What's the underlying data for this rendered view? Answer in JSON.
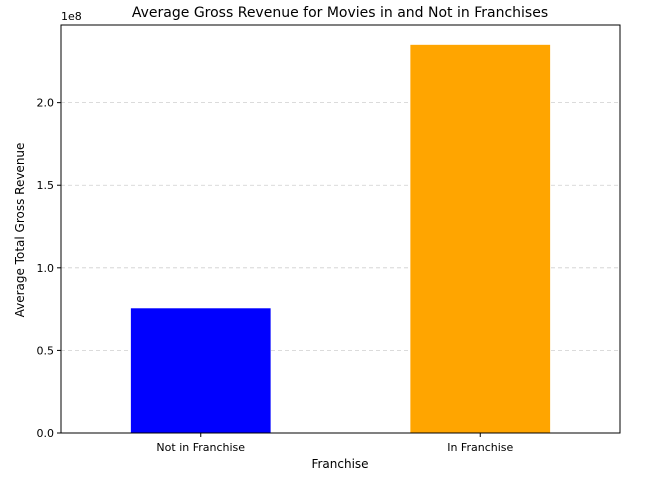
{
  "chart_data": {
    "type": "bar",
    "title": "Average Gross Revenue for Movies in and Not in Franchises",
    "xlabel": "Franchise",
    "ylabel": "Average Total Gross Revenue",
    "y_offset_label": "1e8",
    "categories": [
      "Not in Franchise",
      "In Franchise"
    ],
    "values": [
      75500000,
      235000000
    ],
    "colors": [
      "#0000ff",
      "#ffa500"
    ],
    "ylim": [
      0,
      247000000
    ],
    "yticks": [
      0,
      50000000,
      100000000,
      150000000,
      200000000
    ],
    "ytick_labels": [
      "0.0",
      "0.5",
      "1.0",
      "1.5",
      "2.0"
    ],
    "grid": "y-dashed",
    "legend": "none"
  }
}
